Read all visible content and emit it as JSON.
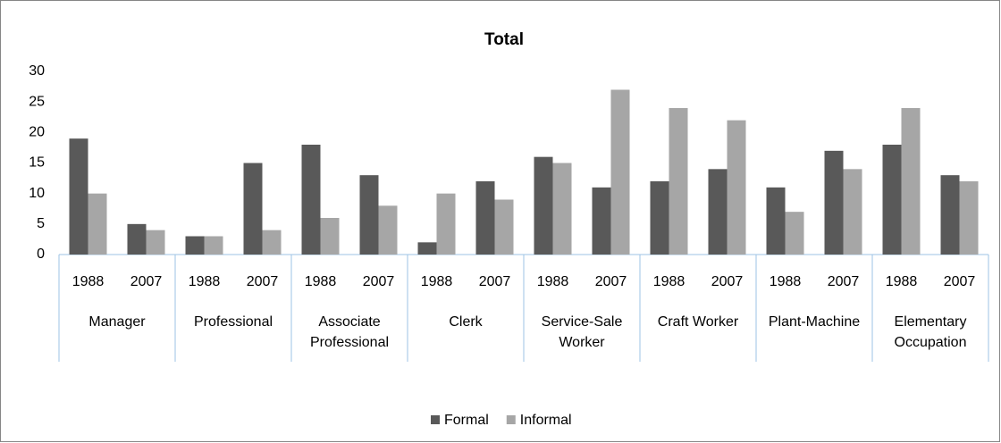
{
  "chart_data": {
    "type": "bar",
    "title": "Total",
    "categories": [
      "1988",
      "2007",
      "1988",
      "2007",
      "1988",
      "2007",
      "1988",
      "2007",
      "1988",
      "2007",
      "1988",
      "2007",
      "1988",
      "2007",
      "1988",
      "2007"
    ],
    "groups": [
      "Manager",
      "Professional",
      "Associate Professional",
      "Clerk",
      "Service-Sale Worker",
      "Craft Worker",
      "Plant-Machine",
      "Elementary Occupation"
    ],
    "series": [
      {
        "name": "Formal",
        "color": "#595959",
        "values": [
          19,
          5,
          3,
          15,
          18,
          13,
          2,
          12,
          16,
          11,
          12,
          14,
          11,
          17,
          18,
          13
        ]
      },
      {
        "name": "Informal",
        "color": "#a6a6a6",
        "values": [
          10,
          4,
          3,
          4,
          6,
          8,
          10,
          9,
          15,
          27,
          24,
          22,
          7,
          14,
          24,
          12
        ]
      }
    ],
    "ylim": [
      0,
      30
    ],
    "yticks": [
      0,
      5,
      10,
      15,
      20,
      25,
      30
    ],
    "grid": false,
    "legend": "bottom"
  }
}
